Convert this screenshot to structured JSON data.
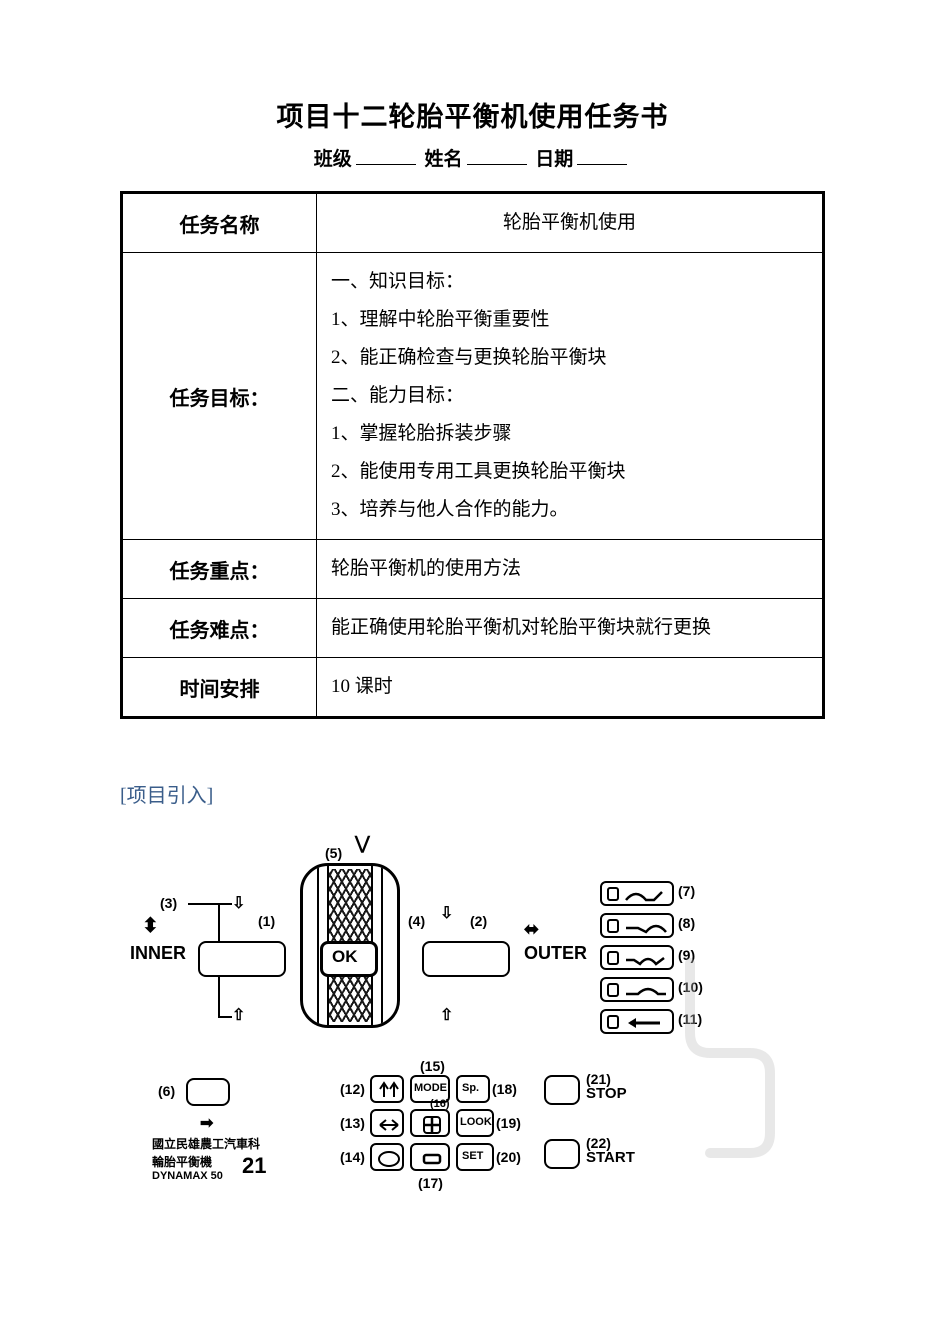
{
  "title": "项目十二轮胎平衡机使用任务书",
  "form": {
    "class_label": "班级",
    "name_label": "姓名",
    "date_label": "日期"
  },
  "table": {
    "rows": [
      {
        "label": "任务名称",
        "content": "轮胎平衡机使用",
        "center": true
      },
      {
        "label": "任务目标：",
        "content": "一、知识目标：\n1、理解中轮胎平衡重要性\n2、能正确检查与更换轮胎平衡块\n二、能力目标：\n1、掌握轮胎拆装步骤\n2、能使用专用工具更换轮胎平衡块\n3、培养与他人合作的能力。"
      },
      {
        "label": "任务重点：",
        "content": "轮胎平衡机的使用方法"
      },
      {
        "label": "任务难点：",
        "content": "能正确使用轮胎平衡机对轮胎平衡块就行更换"
      },
      {
        "label": "时间安排",
        "content": "10 课时"
      }
    ]
  },
  "section_intro": "[项目引入]",
  "diagram": {
    "inner": "INNER",
    "outer": "OUTER",
    "ok": "OK",
    "stop": "STOP",
    "start": "START",
    "mode": "MODE",
    "sp": "Sp.",
    "look": "LOOK",
    "set": "SET",
    "callouts": {
      "c1": "(1)",
      "c2": "(2)",
      "c3": "(3)",
      "c4": "(4)",
      "c5": "(5)",
      "c6": "(6)",
      "c7": "(7)",
      "c8": "(8)",
      "c9": "(9)",
      "c10": "(10)",
      "c11": "(11)",
      "c12": "(12)",
      "c13": "(13)",
      "c14": "(14)",
      "c15": "(15)",
      "c16": "(16)",
      "c17": "(17)",
      "c18": "(18)",
      "c19": "(19)",
      "c20": "(20)",
      "c21": "(21)",
      "c22": "(22)"
    },
    "credits_line1": "國立民雄農工汽車科",
    "credits_line2": "輪胎平衡機",
    "credits_line3": "DYNAMAX 50",
    "page_num": "21"
  },
  "style": {
    "text_color": "#000000",
    "accent_color": "#3a5d8a",
    "watermark_color": "#bfbfbf",
    "border_width_outer": 3,
    "border_width_inner": 1.5,
    "title_fontsize": 27,
    "label_fontsize": 20,
    "cell_fontsize": 19,
    "diagram_label_fontsize": 14,
    "diagram_bigtext_fontsize": 18
  }
}
